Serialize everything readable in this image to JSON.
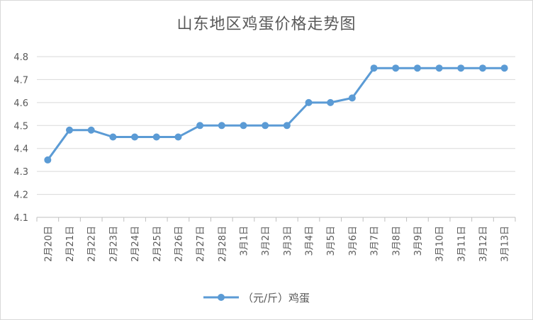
{
  "chart_data": {
    "type": "line",
    "title": "山东地区鸡蛋价格走势图",
    "xlabel": "",
    "ylabel": "",
    "categories": [
      "2月20日",
      "2月21日",
      "2月22日",
      "2月23日",
      "2月24日",
      "2月25日",
      "2月26日",
      "2月27日",
      "2月28日",
      "3月1日",
      "3月2日",
      "3月3日",
      "3月4日",
      "3月5日",
      "3月6日",
      "3月7日",
      "3月8日",
      "3月9日",
      "3月10日",
      "3月11日",
      "3月12日",
      "3月13日"
    ],
    "series": [
      {
        "name": "（元/斤）鸡蛋",
        "values": [
          4.35,
          4.48,
          4.48,
          4.45,
          4.45,
          4.45,
          4.45,
          4.5,
          4.5,
          4.5,
          4.5,
          4.5,
          4.6,
          4.6,
          4.62,
          4.75,
          4.75,
          4.75,
          4.75,
          4.75,
          4.75,
          4.75
        ]
      }
    ],
    "ylim": [
      4.1,
      4.8
    ],
    "yticks": [
      "4.1",
      "4.2",
      "4.3",
      "4.4",
      "4.5",
      "4.6",
      "4.7",
      "4.8"
    ],
    "grid": true,
    "legend_position": "bottom",
    "series_color": "#5b9bd5"
  }
}
